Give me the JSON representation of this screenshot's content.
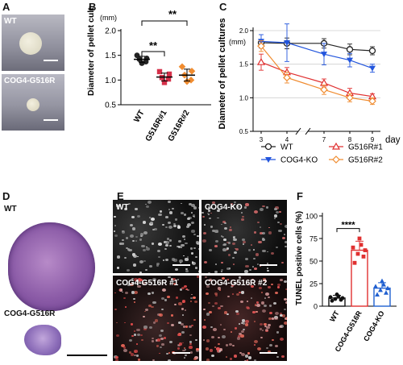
{
  "panels": {
    "a": "A",
    "b": "B",
    "c": "C",
    "d": "D",
    "e": "E",
    "f": "F"
  },
  "panel_a": {
    "top_label": "WT",
    "bottom_label": "COG4-G516R"
  },
  "panel_d": {
    "top_label": "WT",
    "bottom_label": "COG4-G516R"
  },
  "panel_e": {
    "labels": [
      "WT",
      "COG4-KO",
      "COG4-G516R #1",
      "COG4-G516R #2"
    ]
  },
  "colors": {
    "wt": "#222222",
    "ko": "#2255dd",
    "r1": "#e03030",
    "r2": "#f08c30",
    "b_r1": "#d6304a",
    "b_r2": "#f08c30",
    "f_ko": "#2060d0",
    "f_r": "#e03030"
  },
  "chart_data": [
    {
      "id": "B",
      "type": "scatter",
      "ylabel": "Diameter of pellet cultures",
      "yunit": "(mm)",
      "ylim": [
        0.5,
        2.0
      ],
      "yticks": [
        "0.5",
        "1.0",
        "1.5",
        "2.0"
      ],
      "categories": [
        "WT",
        "G516R#1",
        "G516R#2"
      ],
      "series": [
        {
          "category": "WT",
          "points": [
            1.5,
            1.44,
            1.42,
            1.37,
            1.34
          ],
          "mean": 1.42,
          "sd": 0.06
        },
        {
          "category": "G516R#1",
          "points": [
            1.17,
            1.12,
            1.05,
            1.02,
            0.95
          ],
          "mean": 1.06,
          "sd": 0.08
        },
        {
          "category": "G516R#2",
          "points": [
            1.27,
            1.18,
            1.1,
            1.0,
            0.97
          ],
          "mean": 1.1,
          "sd": 0.12
        }
      ],
      "significance": [
        {
          "from": "WT",
          "to": "G516R#1",
          "label": "**"
        },
        {
          "from": "WT",
          "to": "G516R#2",
          "label": "**"
        }
      ]
    },
    {
      "id": "C",
      "type": "line",
      "ylabel": "Diameter of pellet cultures",
      "yunit": "(mm)",
      "xlabel": "day",
      "x": [
        3,
        4,
        7,
        8,
        9
      ],
      "xticks": [
        "3",
        "4",
        "7",
        "8",
        "9"
      ],
      "ylim": [
        0.5,
        2.0
      ],
      "yticks": [
        "0.5",
        "1.0",
        "1.5",
        "2.0"
      ],
      "series": [
        {
          "name": "WT",
          "values": [
            1.82,
            1.81,
            1.81,
            1.72,
            1.7
          ],
          "err": [
            0.05,
            0.08,
            0.07,
            0.08,
            0.06
          ]
        },
        {
          "name": "COG4-KO",
          "values": [
            1.84,
            1.82,
            1.65,
            1.56,
            1.44
          ],
          "err": [
            0.1,
            0.28,
            0.16,
            0.1,
            0.06
          ]
        },
        {
          "name": "G516R#1",
          "values": [
            1.53,
            1.38,
            1.22,
            1.07,
            1.02
          ],
          "err": [
            0.12,
            0.07,
            0.06,
            0.07,
            0.04
          ]
        },
        {
          "name": "G516R#2",
          "values": [
            1.77,
            1.3,
            1.12,
            1.0,
            0.95
          ],
          "err": [
            0.08,
            0.08,
            0.07,
            0.06,
            0.05
          ]
        }
      ]
    },
    {
      "id": "F",
      "type": "bar",
      "ylabel": "TUNEL positive cells (%)",
      "ylim": [
        0,
        100
      ],
      "yticks": [
        "0",
        "25",
        "50",
        "75",
        "100"
      ],
      "categories": [
        "WT",
        "COG4-G516R",
        "COG4-KO"
      ],
      "values": [
        9,
        62,
        20
      ],
      "err": [
        3,
        10,
        6
      ],
      "points": [
        [
          6,
          7,
          8,
          9,
          10,
          11,
          13
        ],
        [
          48,
          55,
          58,
          62,
          65,
          68,
          75
        ],
        [
          13,
          15,
          18,
          20,
          22,
          24,
          28
        ]
      ],
      "significance": [
        {
          "from": "WT",
          "to": "COG4-G516R",
          "label": "****"
        }
      ]
    }
  ]
}
